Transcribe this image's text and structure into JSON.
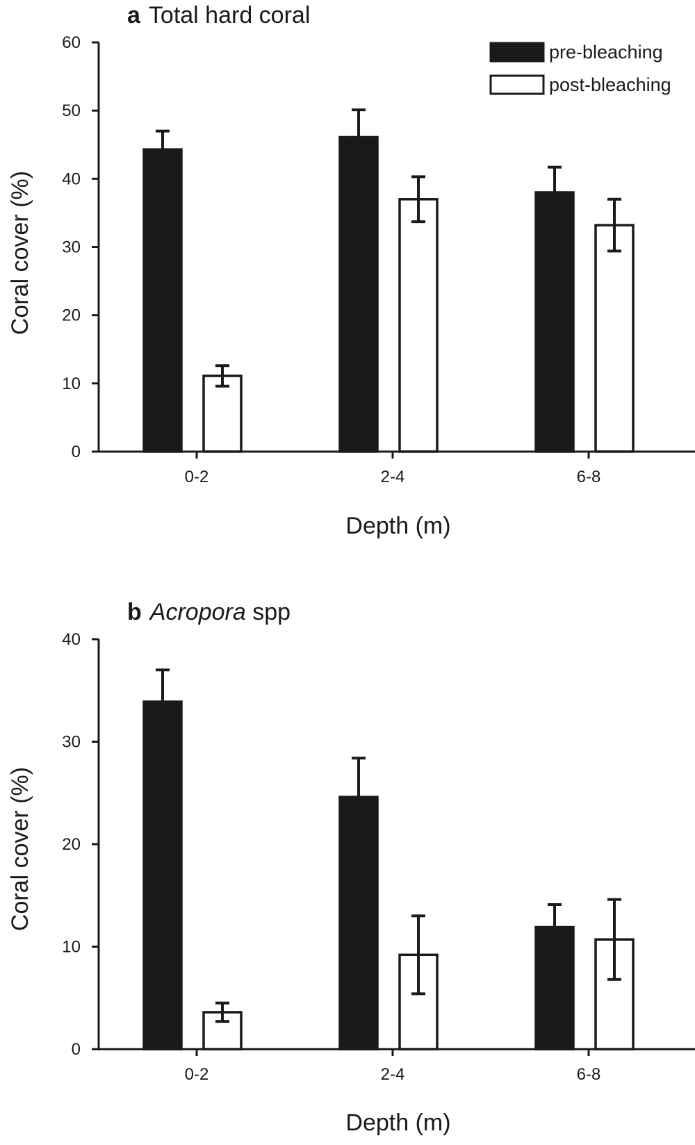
{
  "legend": {
    "placement": "top-right",
    "entries": [
      {
        "label": "pre-bleaching",
        "color": "#1a1a1a"
      },
      {
        "label": "post-bleaching",
        "color": "#ffffff"
      }
    ]
  },
  "colors": {
    "ink": "#1a1a1a",
    "pre": "#1a1a1a",
    "post": "#ffffff"
  },
  "panels": [
    {
      "letter": "a",
      "title_main": "Total hard coral",
      "title_rest": ""
    },
    {
      "letter": "b",
      "title_main": "Acropora",
      "title_rest": " spp"
    }
  ],
  "chart_data": [
    {
      "type": "bar",
      "title": "a Total hard coral",
      "xlabel": "Depth (m)",
      "ylabel": "Coral cover (%)",
      "ylim": [
        0,
        60
      ],
      "yticks": [
        0,
        10,
        20,
        30,
        40,
        50,
        60
      ],
      "grid": false,
      "categories": [
        "0-2",
        "2-4",
        "6-8"
      ],
      "series": [
        {
          "name": "pre-bleaching",
          "values": [
            44.3,
            46.1,
            38.0
          ],
          "error": [
            2.7,
            4.0,
            3.7
          ]
        },
        {
          "name": "post-bleaching",
          "values": [
            11.1,
            37.0,
            33.2
          ],
          "error": [
            1.5,
            3.3,
            3.8
          ]
        }
      ]
    },
    {
      "type": "bar",
      "title": "b Acropora spp",
      "xlabel": "Depth (m)",
      "ylabel": "Coral cover (%)",
      "ylim": [
        0,
        40
      ],
      "yticks": [
        0,
        10,
        20,
        30,
        40
      ],
      "grid": false,
      "categories": [
        "0-2",
        "2-4",
        "6-8"
      ],
      "series": [
        {
          "name": "pre-bleaching",
          "values": [
            33.9,
            24.6,
            11.9
          ],
          "error": [
            3.1,
            3.8,
            2.2
          ]
        },
        {
          "name": "post-bleaching",
          "values": [
            3.6,
            9.2,
            10.7
          ],
          "error": [
            0.9,
            3.8,
            3.9
          ]
        }
      ]
    }
  ]
}
